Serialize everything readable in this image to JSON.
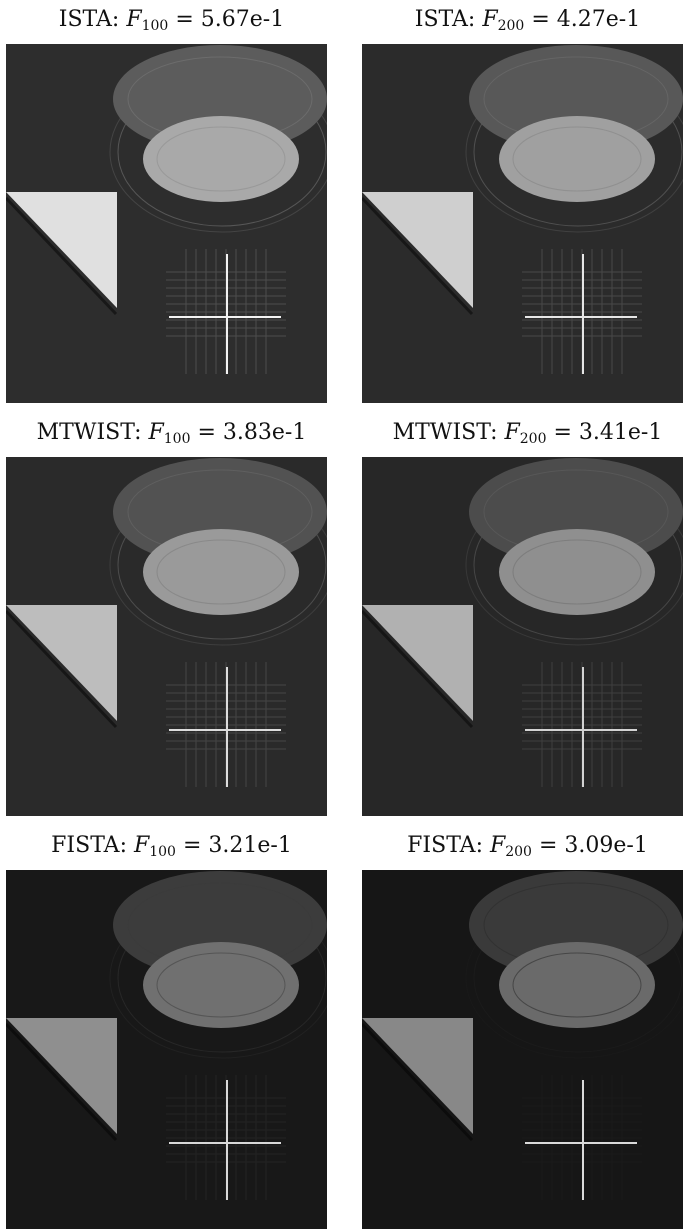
{
  "panels": [
    {
      "method": "ISTA",
      "k": "100",
      "value": "5.67e-1",
      "bg": "#2d2d2d",
      "ell_big": "#5c5c5c",
      "ell_small": "#a9a9a9",
      "tri": "#e0e0e0",
      "cross": "#f2f2f2",
      "ring": "#8a8a8a"
    },
    {
      "method": "ISTA",
      "k": "200",
      "value": "4.27e-1",
      "bg": "#2b2b2b",
      "ell_big": "#585858",
      "ell_small": "#a0a0a0",
      "tri": "#cfcfcf",
      "cross": "#e6e6e6",
      "ring": "#7f7f7f"
    },
    {
      "method": "MTWIST",
      "k": "100",
      "value": "3.83e-1",
      "bg": "#2a2a2a",
      "ell_big": "#525252",
      "ell_small": "#9a9a9a",
      "tri": "#bdbdbd",
      "cross": "#dddddd",
      "ring": "#777777"
    },
    {
      "method": "MTWIST",
      "k": "200",
      "value": "3.41e-1",
      "bg": "#272727",
      "ell_big": "#4c4c4c",
      "ell_small": "#8f8f8f",
      "tri": "#b1b1b1",
      "cross": "#d3d3d3",
      "ring": "#6c6c6c"
    },
    {
      "method": "FISTA",
      "k": "100",
      "value": "3.21e-1",
      "bg": "#181818",
      "ell_big": "#3c3c3c",
      "ell_small": "#707070",
      "tri": "#8f8f8f",
      "cross": "#d9d9d9",
      "ring": "#3a3a3a"
    },
    {
      "method": "FISTA",
      "k": "200",
      "value": "3.09e-1",
      "bg": "#161616",
      "ell_big": "#3a3a3a",
      "ell_small": "#6a6a6a",
      "tri": "#888888",
      "cross": "#dadada",
      "ring": "#222222"
    }
  ]
}
